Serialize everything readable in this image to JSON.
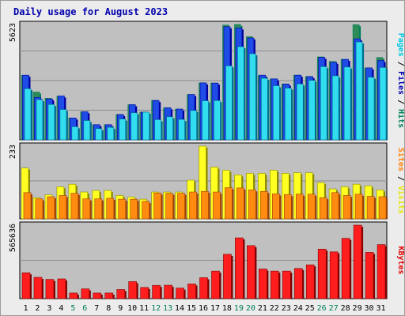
{
  "colors": {
    "background": "#ececec",
    "plot_bg": "#c0c0c0",
    "grid": "#8c8c8c",
    "title": "#0000ad",
    "hits_dark": "#00805c",
    "hits": "#2e8b57",
    "files_dark": "#0000a0",
    "files": "#1f4be6",
    "pages_dark": "#006c8c",
    "pages": "#33ddf0",
    "visits_dark": "#8a8a00",
    "visits": "#ffff22",
    "sites_dark": "#a04000",
    "sites": "#ff8c10",
    "kbytes_dark": "#800000",
    "kbytes": "#ff1d1d",
    "weekday_label": "#000000",
    "weekend_label": "#00805c",
    "label_hits": "#00805c",
    "label_files": "#0000ad",
    "label_pages": "#00c8e0",
    "label_visits": "#e6e600",
    "label_sites": "#ff8000",
    "label_kbytes": "#e00000"
  },
  "chart_data": {
    "type": "bar",
    "title": "Daily usage for August 2023",
    "categories": [
      "1",
      "2",
      "3",
      "4",
      "5",
      "6",
      "7",
      "8",
      "9",
      "10",
      "11",
      "12",
      "13",
      "14",
      "15",
      "16",
      "17",
      "18",
      "19",
      "20",
      "21",
      "22",
      "23",
      "24",
      "25",
      "26",
      "27",
      "28",
      "29",
      "30",
      "31"
    ],
    "weekend_days": [
      "5",
      "6",
      "12",
      "13",
      "19",
      "20",
      "26",
      "27"
    ],
    "panels": [
      {
        "id": "hits-files-pages",
        "ymax_label": "5623",
        "ymax": 5623,
        "right_labels": {
          "pages": "Pages",
          "files": "Files",
          "hits": "Hits",
          "sep": "/"
        },
        "series": [
          {
            "name": "Hits",
            "values": [
              3100,
              2300,
              2000,
              2100,
              1050,
              1350,
              730,
              730,
              1220,
              1690,
              1330,
              1900,
              1540,
              1480,
              2180,
              2740,
              2730,
              5520,
              5550,
              4960,
              3090,
              2930,
              2690,
              3110,
              3050,
              3990,
              3770,
              3870,
              5540,
              3460,
              3960
            ]
          },
          {
            "name": "Files",
            "values": [
              3110,
              2040,
              1970,
              2110,
              1050,
              1350,
              730,
              730,
              1220,
              1690,
              1330,
              1890,
              1540,
              1480,
              2180,
              2740,
              2730,
              5440,
              5380,
              4900,
              3110,
              2930,
              2680,
              3110,
              3040,
              3970,
              3730,
              3870,
              4860,
              3460,
              3820
            ]
          },
          {
            "name": "Pages",
            "values": [
              2460,
              1930,
              1700,
              1460,
              630,
              930,
              540,
              600,
              1000,
              1300,
              1330,
              970,
              1110,
              980,
              1410,
              1880,
              1890,
              3560,
              4480,
              4140,
              2960,
              2600,
              2490,
              2690,
              2860,
              3520,
              3080,
              3500,
              4710,
              3010,
              3480
            ]
          }
        ]
      },
      {
        "id": "visits-sites",
        "ymax_label": "233",
        "ymax": 233,
        "right_labels": {
          "sites": "Sites",
          "visits": "Visits",
          "sep": "/"
        },
        "series": [
          {
            "name": "Visits",
            "values": [
              163,
              68,
              77,
              103,
              111,
              86,
              91,
              91,
              75,
              70,
              63,
              86,
              86,
              86,
              124,
              233,
              166,
              156,
              141,
              146,
              146,
              156,
              146,
              148,
              148,
              116,
              96,
              103,
              111,
              106,
              93
            ]
          },
          {
            "name": "Sites",
            "values": [
              84,
              64,
              71,
              75,
              82,
              64,
              64,
              66,
              63,
              63,
              56,
              83,
              82,
              82,
              86,
              88,
              86,
              100,
              99,
              93,
              88,
              80,
              78,
              79,
              79,
              68,
              84,
              75,
              79,
              72,
              71
            ]
          }
        ]
      },
      {
        "id": "kbytes",
        "ymax_label": "565636",
        "ymax": 565636,
        "right_labels": {
          "kbytes": "KBytes"
        },
        "series": [
          {
            "name": "KBytes",
            "values": [
              199000,
              164000,
              148000,
              152000,
              43000,
              75000,
              43000,
              43000,
              70000,
              131000,
              86000,
              102000,
              103000,
              81000,
              113000,
              161000,
              212000,
              341000,
              468000,
              408000,
              228000,
              212000,
              212000,
              232000,
              260000,
              381000,
              360000,
              464000,
              565636,
              356000,
              416000
            ]
          }
        ]
      }
    ]
  }
}
